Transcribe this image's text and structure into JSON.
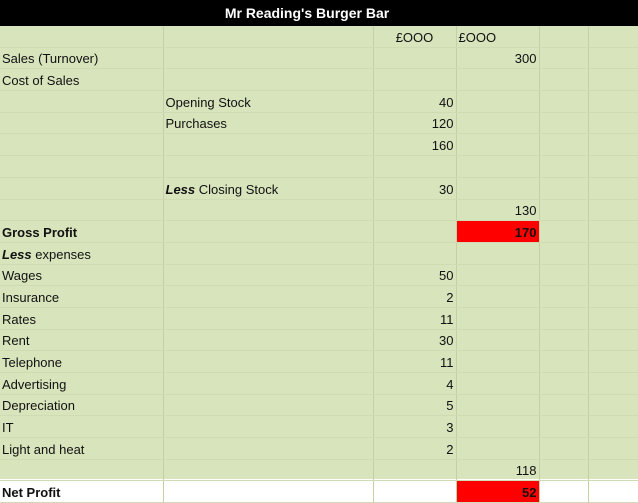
{
  "title": "Mr Reading's Burger Bar",
  "columns": {
    "col_a": "£OOO",
    "col_b": "£OOO"
  },
  "rows": {
    "sales": {
      "label": "Sales (Turnover)",
      "b": "300"
    },
    "cost_of_sales": {
      "label": "Cost of Sales"
    },
    "opening_stock": {
      "label": "Opening Stock",
      "a": "40"
    },
    "purchases": {
      "label": "Purchases",
      "a": "120"
    },
    "subtotal": {
      "a": "160"
    },
    "closing_stock": {
      "prefix": "Less",
      "label": "Closing Stock",
      "a": "30"
    },
    "cost_total": {
      "b": "130"
    },
    "gross_profit": {
      "label": "Gross Profit",
      "b": "170"
    },
    "expenses": {
      "prefix": "Less",
      "label": "expenses"
    },
    "wages": {
      "label": "Wages",
      "a": "50"
    },
    "insurance": {
      "label": "Insurance",
      "a": "2"
    },
    "rates": {
      "label": "Rates",
      "a": "11"
    },
    "rent": {
      "label": "Rent",
      "a": "30"
    },
    "telephone": {
      "label": "Telephone",
      "a": "11"
    },
    "advertising": {
      "label": "Advertising",
      "a": "4"
    },
    "depreciation": {
      "label": "Depreciation",
      "a": "5"
    },
    "it": {
      "label": "IT",
      "a": "3"
    },
    "light_heat": {
      "label": "Light and heat",
      "a": "2"
    },
    "expenses_total": {
      "b": "118"
    },
    "net_profit": {
      "label": "Net Profit",
      "b": "52"
    }
  },
  "colors": {
    "sheet_bg": "#d8e4bc",
    "highlight": "#ff0000",
    "title_bg": "#000000"
  }
}
